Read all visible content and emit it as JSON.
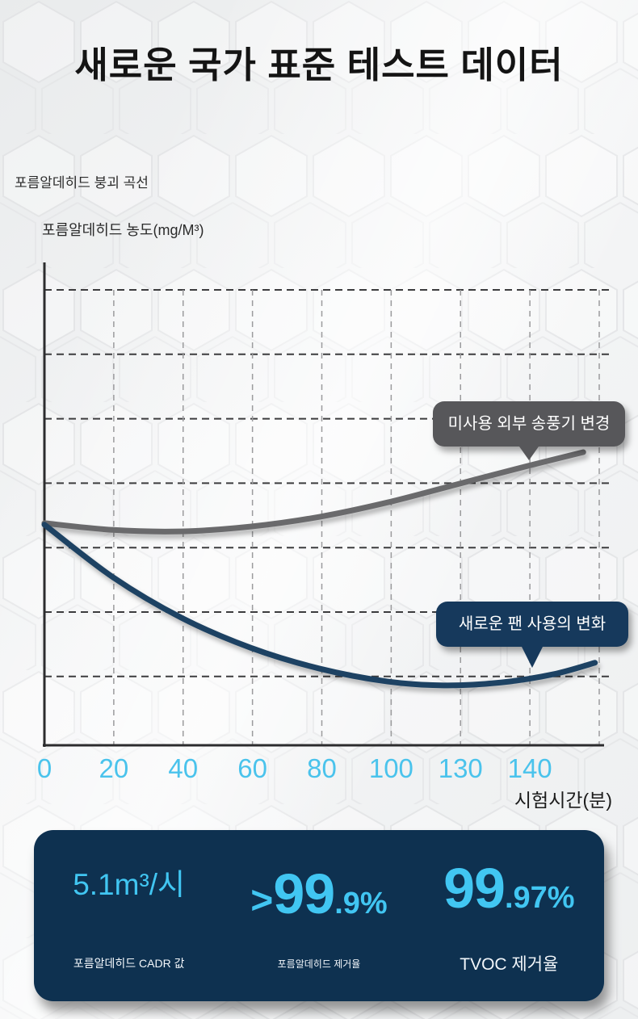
{
  "page": {
    "title": "새로운 국가 표준 테스트 데이터"
  },
  "chart": {
    "subtitle": "포름알데히드 붕괴 곡선",
    "y_axis_label": "포름알데히드 농도(mg/M³)",
    "x_axis_label": "시험시간(분)"
  },
  "chart_data": {
    "type": "line",
    "title": "포름알데히드 붕괴 곡선",
    "xlabel": "시험시간(분)",
    "ylabel": "포름알데히드 농도(mg/M³)",
    "x_tick_labels": [
      "0",
      "20",
      "40",
      "60",
      "80",
      "100",
      "130",
      "140"
    ],
    "grid": {
      "visible": true,
      "style": "dashed",
      "h_lines": 7,
      "v_lines": 8
    },
    "legend_position": "callout-boxes-on-curves",
    "series": [
      {
        "name": "미사용 외부 송풍기 변경",
        "color": "#6a6a6c",
        "trend": "stays high, slowly rises after slight dip",
        "points_frac": [
          [
            0.0,
            0.54
          ],
          [
            0.123,
            0.554
          ],
          [
            0.246,
            0.557
          ],
          [
            0.37,
            0.547
          ],
          [
            0.493,
            0.527
          ],
          [
            0.616,
            0.497
          ],
          [
            0.739,
            0.46
          ],
          [
            0.862,
            0.423
          ],
          [
            0.967,
            0.393
          ]
        ]
      },
      {
        "name": "새로운 팬 사용의 변화",
        "color": "#1d4263",
        "trend": "falls rapidly then flattens near bottom",
        "points_frac": [
          [
            0.0,
            0.543
          ],
          [
            0.123,
            0.652
          ],
          [
            0.246,
            0.736
          ],
          [
            0.37,
            0.798
          ],
          [
            0.493,
            0.841
          ],
          [
            0.616,
            0.868
          ],
          [
            0.717,
            0.876
          ],
          [
            0.819,
            0.87
          ],
          [
            0.913,
            0.853
          ],
          [
            0.988,
            0.829
          ]
        ]
      }
    ]
  },
  "stats_panel": {
    "items": [
      {
        "prefix": "",
        "big": "5.1m³/시",
        "small": "",
        "caption": "포름알데히드 CADR 값"
      },
      {
        "prefix": ">",
        "big": "99",
        "small": ".9%",
        "caption": "포름알데히드 제거율"
      },
      {
        "prefix": "",
        "big": "99",
        "small": ".97%",
        "caption": "TVOC 제거율"
      }
    ]
  },
  "colors": {
    "accent_cyan": "#41c6f2",
    "tick_cyan": "#4ac3ec",
    "panel_navy": "#0e3150",
    "callout_gray_bg": "#57575a",
    "callout_navy_bg": "#16395c",
    "axis_dark": "#2c2c2e",
    "h_grid": "#3c3c3e",
    "v_grid": "#9b9b9d"
  }
}
